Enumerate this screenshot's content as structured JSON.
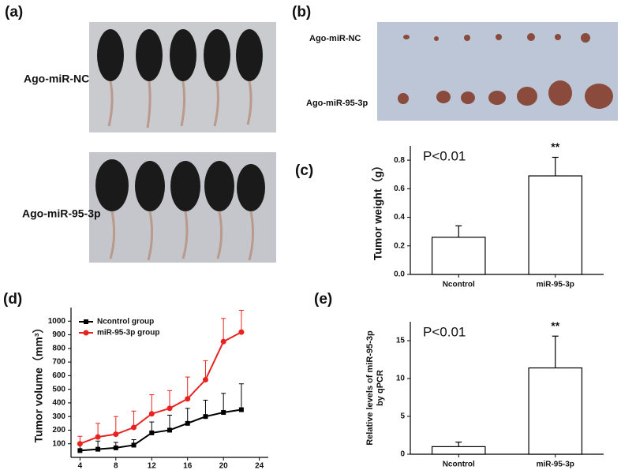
{
  "panel_labels": [
    "(a)",
    "(b)",
    "(c)",
    "(d)",
    "(e)"
  ],
  "photo_a": {
    "rows": [
      "Ago-miR-NC",
      "Ago-miR-95-3p"
    ]
  },
  "photo_b": {
    "rows": [
      "Ago-miR-NC",
      "Ago-miR-95-3p"
    ]
  },
  "chart_data": [
    {
      "type": "bar",
      "ylabel": [
        "Tumor weight（g）"
      ],
      "annotation": "P<0.01",
      "categories": [
        "Ncontrol",
        "miR-95-3p"
      ],
      "values": [
        0.26,
        0.69
      ],
      "errors": [
        0.08,
        0.13
      ],
      "significance": [
        null,
        "**"
      ],
      "ylim": [
        0,
        0.9
      ],
      "yticks": [
        {
          "value": 0,
          "label": "0.0"
        },
        0.2,
        0.4,
        0.6,
        0.8
      ]
    },
    {
      "type": "line",
      "ylabel": [
        "Tumor volume（mm³）"
      ],
      "x": [
        4,
        6,
        8,
        10,
        12,
        14,
        16,
        18,
        20,
        22
      ],
      "series": [
        {
          "name": "Ncontrol group",
          "color": "#000000",
          "values": [
            50,
            60,
            70,
            90,
            180,
            200,
            250,
            300,
            330,
            350
          ],
          "errors": [
            50,
            60,
            40,
            40,
            80,
            110,
            110,
            120,
            140,
            190
          ]
        },
        {
          "name": "miR-95-3p group",
          "color": "#e8231f",
          "values": [
            100,
            150,
            170,
            220,
            320,
            360,
            430,
            570,
            850,
            920
          ],
          "errors": [
            55,
            100,
            130,
            120,
            140,
            130,
            160,
            140,
            170,
            160
          ]
        }
      ],
      "xlim": [
        3,
        25
      ],
      "xticks": [
        4,
        8,
        12,
        16,
        20,
        24
      ],
      "ylim": [
        0,
        1100
      ],
      "yticks": [
        100,
        200,
        300,
        400,
        500,
        600,
        700,
        800,
        900,
        1000
      ]
    },
    {
      "type": "bar",
      "ylabel": [
        "Relative levels of miR-95-3p",
        "by qPCR"
      ],
      "annotation": "P<0.01",
      "categories": [
        "Ncontrol",
        "miR-95-3p"
      ],
      "values": [
        1.0,
        11.4
      ],
      "errors": [
        0.6,
        4.2
      ],
      "significance": [
        null,
        "**"
      ],
      "ylim": [
        0,
        17.5
      ],
      "yticks": [
        0,
        5,
        10,
        15
      ]
    }
  ]
}
